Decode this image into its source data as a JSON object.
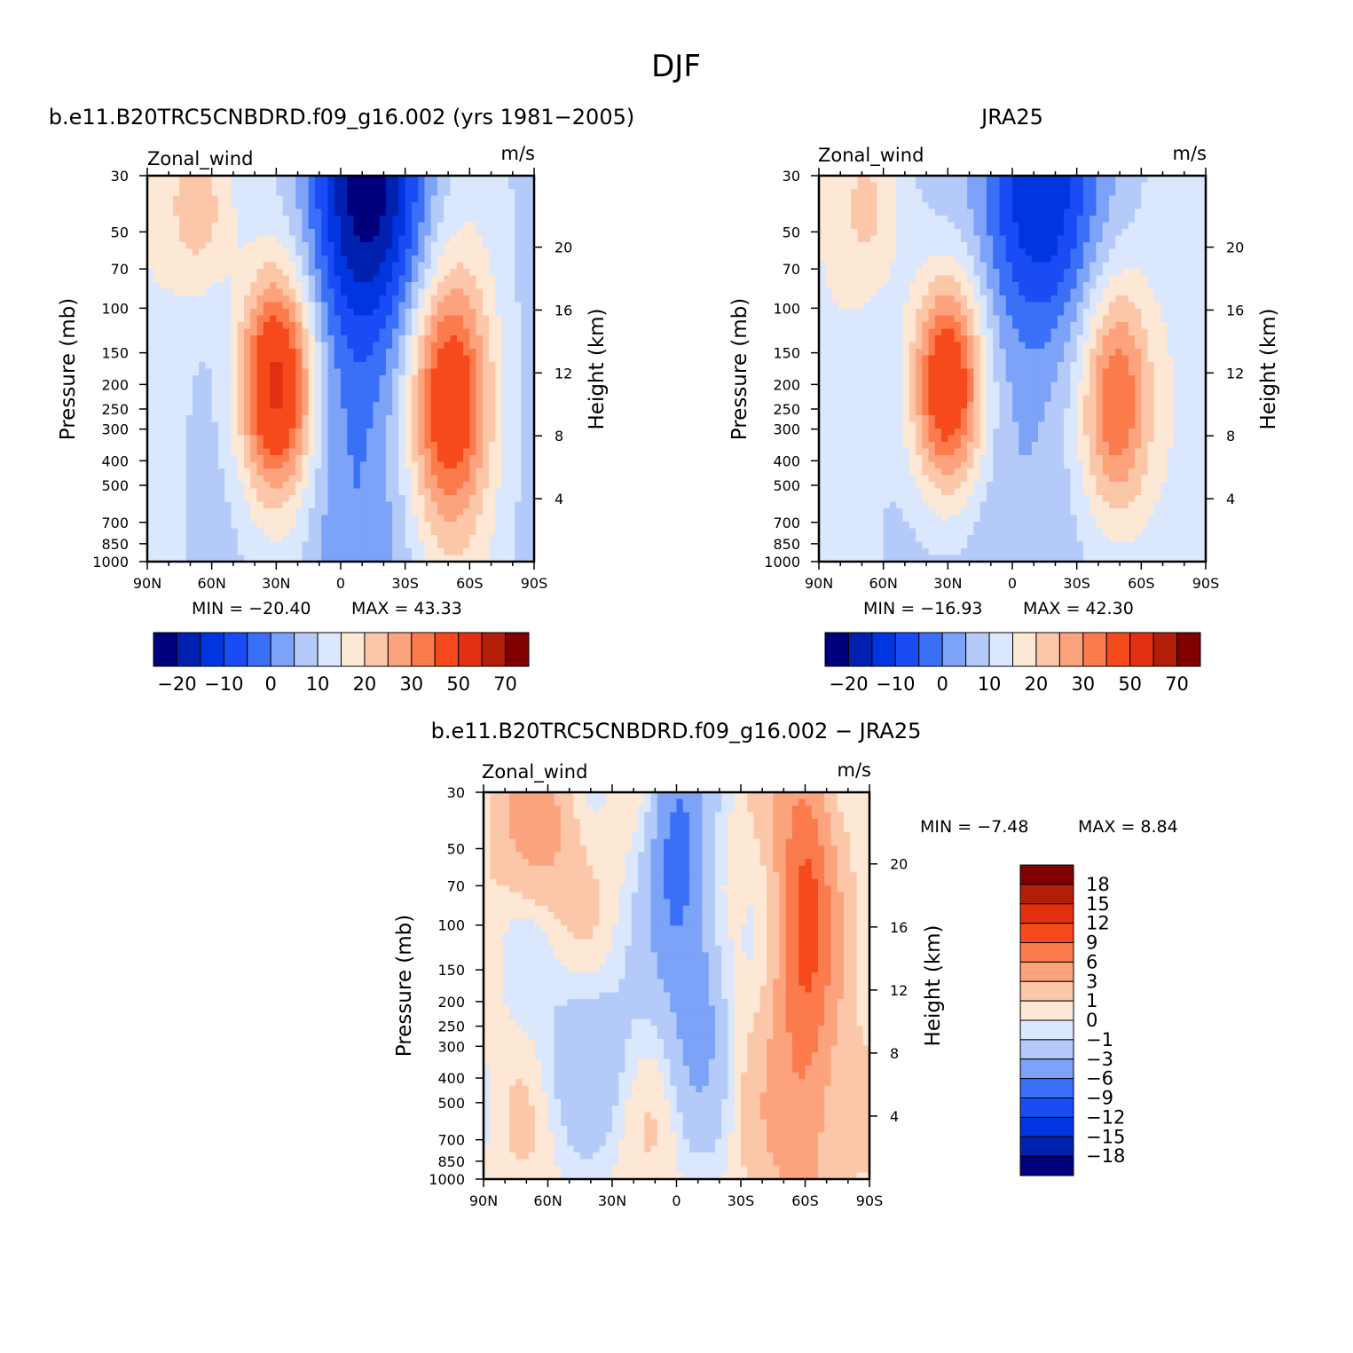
{
  "figure": {
    "title": "DJF",
    "colors": {
      "model_scale": [
        "#00007f",
        "#0020b0",
        "#0036e0",
        "#1a4cf5",
        "#3a6ff7",
        "#7da3f8",
        "#b4cbfa",
        "#dbe7fc",
        "#fde7d5",
        "#fcc7a8",
        "#fca37e",
        "#fb7b4c",
        "#f74a1c",
        "#e33010",
        "#b31e08",
        "#800000"
      ],
      "diff_scale": [
        "#00007f",
        "#0020b0",
        "#0036e0",
        "#1a4cf5",
        "#3a6ff7",
        "#7da3f8",
        "#b4cbfa",
        "#dbe7fc",
        "#fde7d5",
        "#fcc7a8",
        "#fca37e",
        "#fb7b4c",
        "#f74a1c",
        "#e33010",
        "#b31e08",
        "#800000"
      ]
    }
  },
  "chart_data": [
    {
      "type": "heatmap",
      "title": "b.e11.B20TRC5CNBDRD.f09_g16.002 (yrs 1981−2005)",
      "variable": "Zonal_wind",
      "units": "m/s",
      "xlabel": "",
      "ylabel": "Pressure (mb)",
      "ylabel_right": "Height (km)",
      "x_ticks": [
        "90N",
        "60N",
        "30N",
        "0",
        "30S",
        "60S",
        "90S"
      ],
      "x_range": [
        90,
        -90
      ],
      "y_ticks": [
        "30",
        "50",
        "70",
        "100",
        "150",
        "200",
        "250",
        "300",
        "400",
        "500",
        "700",
        "850",
        "1000"
      ],
      "y_range_mb": [
        30,
        1000
      ],
      "y_scale": "log",
      "height_ticks": [
        "20",
        "16",
        "12",
        "8",
        "4"
      ],
      "min_label": "MIN = −20.40",
      "max_label": "MAX = 43.33",
      "min": -20.4,
      "max": 43.33,
      "colorbar_labels": [
        "−20",
        "−10",
        "0",
        "10",
        "20",
        "30",
        "50",
        "70"
      ],
      "features": [
        {
          "lat": 30,
          "p_mb": 200,
          "peak": 43.3,
          "kind": "jet"
        },
        {
          "lat": -50,
          "p_mb": 220,
          "peak": 38,
          "kind": "jet"
        },
        {
          "lat": -15,
          "p_mb": 30,
          "peak": -20.4,
          "kind": "easterly"
        }
      ]
    },
    {
      "type": "heatmap",
      "title": "JRA25",
      "variable": "Zonal_wind",
      "units": "m/s",
      "xlabel": "",
      "ylabel": "Pressure (mb)",
      "ylabel_right": "Height (km)",
      "x_ticks": [
        "90N",
        "60N",
        "30N",
        "0",
        "30S",
        "60S",
        "90S"
      ],
      "x_range": [
        90,
        -90
      ],
      "y_ticks": [
        "30",
        "50",
        "70",
        "100",
        "150",
        "200",
        "250",
        "300",
        "400",
        "500",
        "700",
        "850",
        "1000"
      ],
      "y_range_mb": [
        30,
        1000
      ],
      "y_scale": "log",
      "height_ticks": [
        "20",
        "16",
        "12",
        "8",
        "4"
      ],
      "min_label": "MIN = −16.93",
      "max_label": "MAX = 42.30",
      "min": -16.93,
      "max": 42.3,
      "colorbar_labels": [
        "−20",
        "−10",
        "0",
        "10",
        "20",
        "30",
        "50",
        "70"
      ],
      "features": [
        {
          "lat": 30,
          "p_mb": 200,
          "peak": 42.3,
          "kind": "jet"
        },
        {
          "lat": -48,
          "p_mb": 230,
          "peak": 33,
          "kind": "jet"
        },
        {
          "lat": -15,
          "p_mb": 30,
          "peak": -16.9,
          "kind": "easterly"
        }
      ]
    },
    {
      "type": "heatmap",
      "title": "b.e11.B20TRC5CNBDRD.f09_g16.002 − JRA25",
      "variable": "Zonal_wind",
      "units": "m/s",
      "xlabel": "",
      "ylabel": "Pressure (mb)",
      "ylabel_right": "Height (km)",
      "x_ticks": [
        "90N",
        "60N",
        "30N",
        "0",
        "30S",
        "60S",
        "90S"
      ],
      "x_range": [
        90,
        -90
      ],
      "y_ticks": [
        "30",
        "50",
        "70",
        "100",
        "150",
        "200",
        "250",
        "300",
        "400",
        "500",
        "700",
        "850",
        "1000"
      ],
      "y_range_mb": [
        30,
        1000
      ],
      "y_scale": "log",
      "height_ticks": [
        "20",
        "16",
        "12",
        "8",
        "4"
      ],
      "min_label": "MIN = −7.48",
      "max_label": "MAX = 8.84",
      "min": -7.48,
      "max": 8.84,
      "colorbar_labels": [
        "18",
        "15",
        "12",
        "9",
        "6",
        "3",
        "1",
        "0",
        "−1",
        "−3",
        "−6",
        "−9",
        "−12",
        "−15",
        "−18"
      ],
      "features": [
        {
          "lat": -60,
          "p_mb": 80,
          "peak": 8.84,
          "kind": "positive"
        },
        {
          "lat": 0,
          "p_mb": 50,
          "peak": -7.48,
          "kind": "negative"
        }
      ]
    }
  ]
}
